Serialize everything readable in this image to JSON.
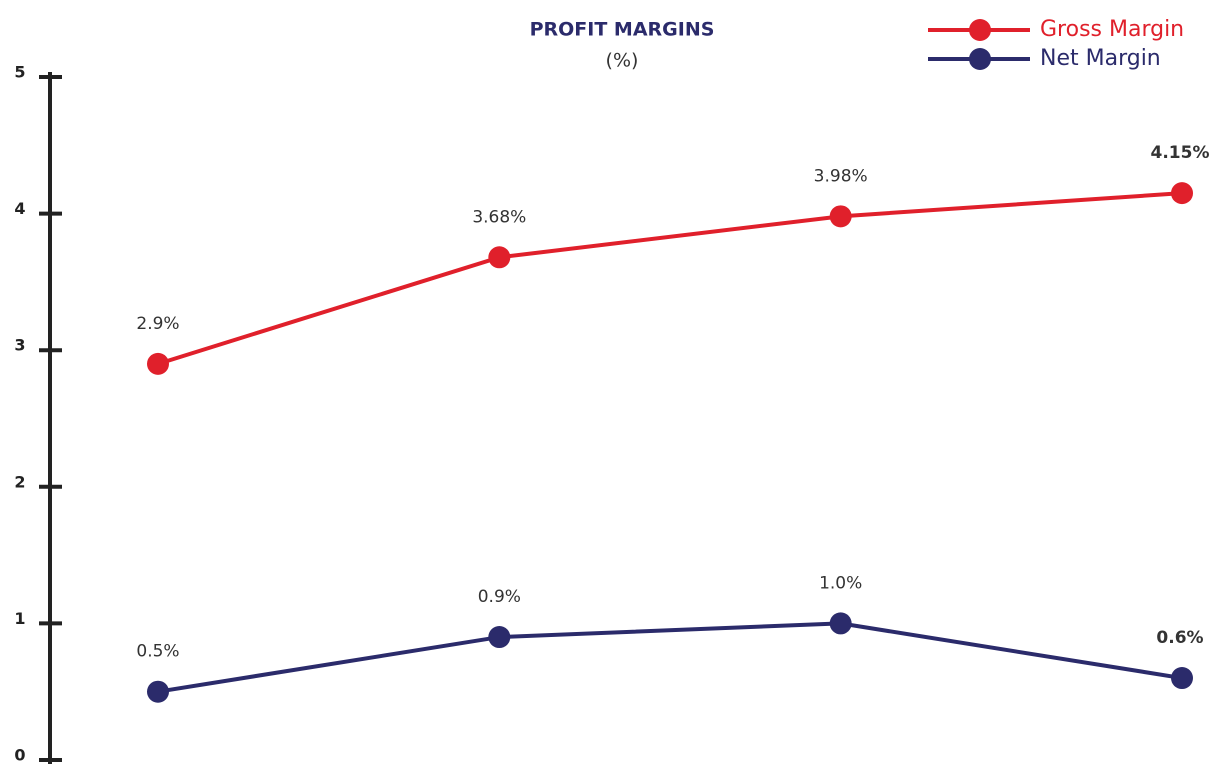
{
  "chart_data": {
    "type": "line",
    "title": "PROFIT MARGINS",
    "subtitle": "(%)",
    "categories": [
      null,
      null,
      null,
      null
    ],
    "series": [
      {
        "name": "Gross Margin",
        "color": "#e0202b",
        "values": [
          2.9,
          3.68,
          3.98,
          4.15
        ],
        "value_labels": [
          "2.9%",
          "3.68%",
          "3.98%",
          "4.15%"
        ]
      },
      {
        "name": "Net Margin",
        "color": "#2b2b6b",
        "values": [
          0.5,
          0.9,
          1.0,
          0.6
        ],
        "value_labels": [
          "0.5%",
          "0.9%",
          "1.0%",
          "0.6%"
        ]
      }
    ],
    "ylim": [
      0,
      5
    ],
    "yticks": [
      0,
      1,
      2,
      3,
      4,
      5
    ],
    "grid": false,
    "legend": "top-right"
  }
}
